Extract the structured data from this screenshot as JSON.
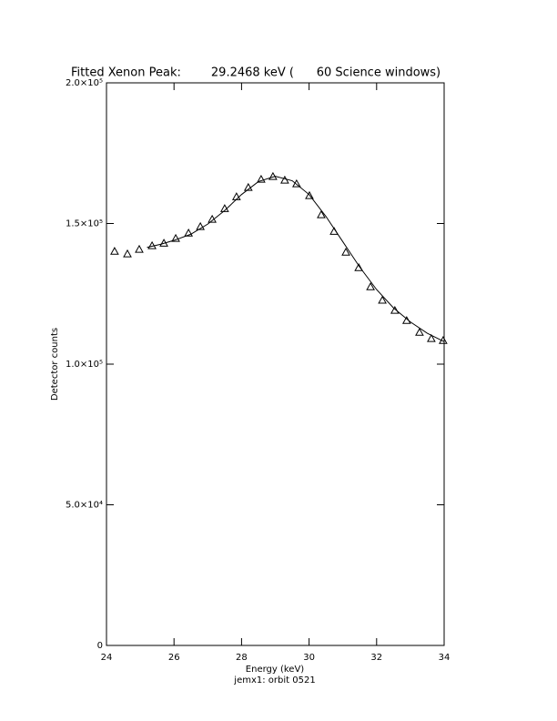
{
  "chart_data": {
    "type": "scatter",
    "title": "Fitted Xenon Peak:        29.2468 keV (      60 Science windows)",
    "x_label": "Energy (keV)",
    "subtitle": "jemx1: orbit 0521",
    "y_label": "Detector counts",
    "xlim": [
      24,
      34
    ],
    "xticks": [
      24,
      26,
      28,
      30,
      32,
      34
    ],
    "ylim": [
      0,
      200000
    ],
    "yticks": [
      0,
      {
        "value": 50000,
        "label": "5.0×10⁴"
      },
      {
        "value": 100000,
        "label": "1.0×10⁵"
      },
      {
        "value": 150000,
        "label": "1.5×10⁵"
      },
      {
        "value": 200000,
        "label": "2.0×10⁵"
      }
    ],
    "color": "#000000",
    "series": [
      {
        "style": "triangle",
        "x": [
          24.24,
          24.62,
          24.97,
          25.35,
          25.7,
          26.05,
          26.43,
          26.78,
          27.13,
          27.5,
          27.85,
          28.2,
          28.58,
          28.93,
          29.28,
          29.63,
          30.01,
          30.36,
          30.74,
          31.09,
          31.47,
          31.82,
          32.17,
          32.54,
          32.89,
          33.27,
          33.62,
          33.97
        ],
        "values": [
          140100,
          139200,
          140800,
          142100,
          143000,
          144700,
          146600,
          148900,
          151500,
          155300,
          159500,
          162800,
          165700,
          166700,
          165400,
          164100,
          159900,
          153100,
          147200,
          139800,
          134300,
          127500,
          122700,
          119100,
          115500,
          111300,
          109100,
          108400
        ]
      },
      {
        "style": "line",
        "x": [
          25.2,
          25.6,
          26,
          26.5,
          27,
          27.5,
          28,
          28.5,
          29,
          29.5,
          30,
          30.5,
          31,
          31.5,
          32,
          32.5,
          33,
          33.5,
          34
        ],
        "values": [
          141500,
          142600,
          144000,
          146200,
          149800,
          154600,
          160300,
          164900,
          166800,
          165200,
          160300,
          152500,
          143500,
          134500,
          126500,
          120000,
          115000,
          111000,
          108000
        ]
      }
    ]
  }
}
